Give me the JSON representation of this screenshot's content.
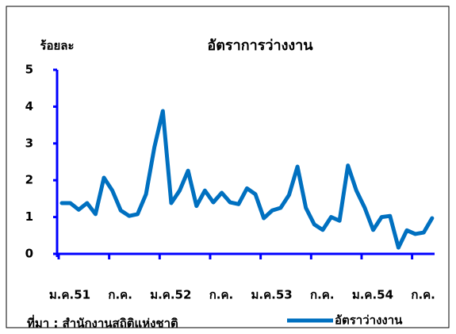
{
  "chart_data": {
    "type": "line",
    "title": "อัตราการว่างงาน",
    "y_label": "ร้อยละ",
    "source": "ที่มา : สำนักงานสถิติแห่งชาติ",
    "categories": [
      "ม.ค.51",
      null,
      null,
      null,
      null,
      null,
      "ก.ค.",
      null,
      null,
      null,
      null,
      null,
      "ม.ค.52",
      null,
      null,
      null,
      null,
      null,
      "ก.ค.",
      null,
      null,
      null,
      null,
      null,
      "ม.ค.53",
      null,
      null,
      null,
      null,
      null,
      "ก.ค.",
      null,
      null,
      null,
      null,
      null,
      "ม.ค.54",
      null,
      null,
      null,
      null,
      null,
      "ก.ค.",
      null,
      null
    ],
    "series": [
      {
        "name": "อัตราว่างงาน",
        "color": "#0070c0",
        "values": [
          1.38,
          1.38,
          1.2,
          1.38,
          1.08,
          2.07,
          1.72,
          1.18,
          1.03,
          1.08,
          1.62,
          2.9,
          3.88,
          1.38,
          1.72,
          2.26,
          1.3,
          1.72,
          1.4,
          1.66,
          1.4,
          1.35,
          1.78,
          1.62,
          0.97,
          1.18,
          1.25,
          1.6,
          2.37,
          1.25,
          0.8,
          0.65,
          1.0,
          0.9,
          2.4,
          1.72,
          1.25,
          0.65,
          1.0,
          1.03,
          0.17,
          0.64,
          0.54,
          0.58,
          0.97
        ]
      }
    ],
    "ylim": [
      0,
      5
    ],
    "yticks": [
      0,
      1,
      2,
      3,
      4,
      5
    ],
    "axis_color": "#0000ff"
  }
}
